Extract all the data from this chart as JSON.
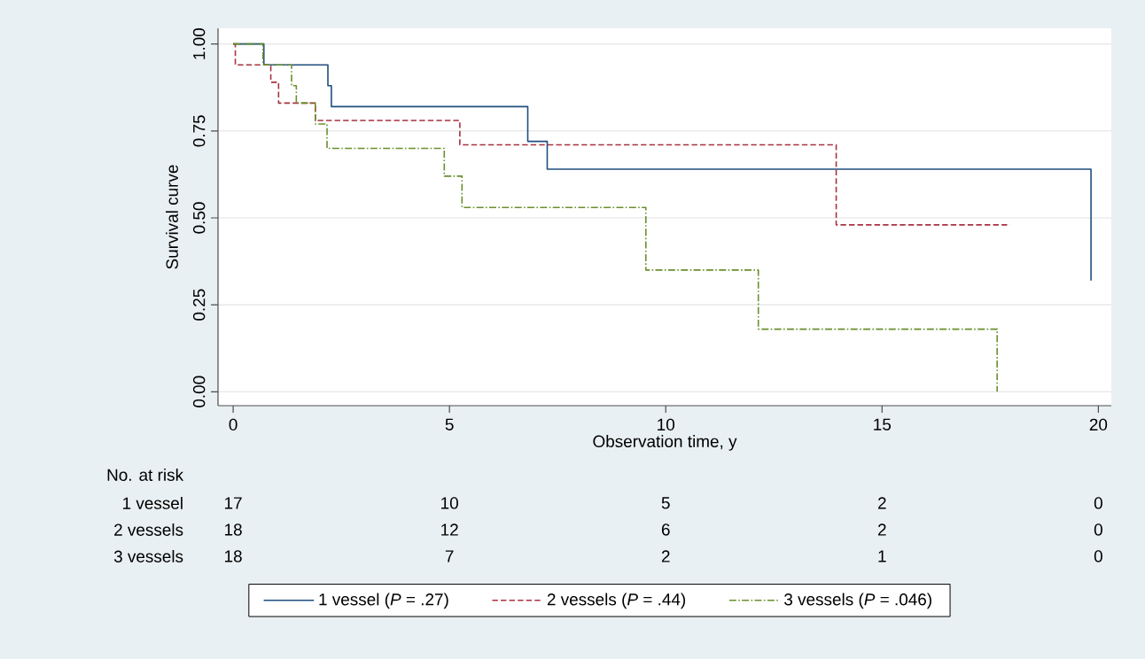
{
  "chart_data": {
    "type": "step",
    "xlabel": "Observation time, y",
    "ylabel": "Survival curve",
    "xlim": [
      -0.35,
      20.3
    ],
    "ylim": [
      -0.04,
      1.045
    ],
    "xticks": [
      0,
      5,
      10,
      15,
      20
    ],
    "yticks": [
      {
        "value": 0,
        "label": "0.00"
      },
      {
        "value": 0.25,
        "label": "0.25"
      },
      {
        "value": 0.5,
        "label": "0.50"
      },
      {
        "value": 0.75,
        "label": "0.75"
      },
      {
        "value": 1,
        "label": "1.00"
      }
    ],
    "grid": "y",
    "legend": "bottom",
    "series": [
      {
        "name": "1 vessel (*P* = .27)",
        "color": "#1f4e7e",
        "line_style": "solid",
        "x": [
          0,
          0.71,
          2.19,
          2.27,
          6.81,
          7.26,
          19.83
        ],
        "values": [
          1.0,
          0.94,
          0.88,
          0.82,
          0.72,
          0.64,
          0.32
        ]
      },
      {
        "name": "2 vessels (*P* = .44)",
        "color": "#a83240",
        "line_style": "dashed",
        "x": [
          0,
          0.05,
          0.87,
          1.05,
          1.9,
          5.24,
          13.94,
          17.96
        ],
        "values": [
          1.0,
          0.94,
          0.89,
          0.83,
          0.78,
          0.71,
          0.48,
          0.48
        ]
      },
      {
        "name": "3 vessels (*P* = .046)",
        "color": "#6a8f2e",
        "line_style": "dashdot",
        "x": [
          0,
          0.69,
          1.35,
          1.46,
          1.9,
          2.17,
          4.88,
          5.29,
          9.54,
          12.14,
          17.66
        ],
        "values": [
          1.0,
          0.94,
          0.88,
          0.83,
          0.77,
          0.7,
          0.62,
          0.53,
          0.35,
          0.18,
          0.0
        ]
      }
    ],
    "annotations": [
      "No. at risk",
      "1 vessel",
      "17",
      "10",
      "5",
      "2",
      "0",
      "2 vessels",
      "18",
      "12",
      "6",
      "2",
      "0",
      "3 vessels",
      "18",
      "7",
      "2",
      "1",
      "0"
    ]
  }
}
